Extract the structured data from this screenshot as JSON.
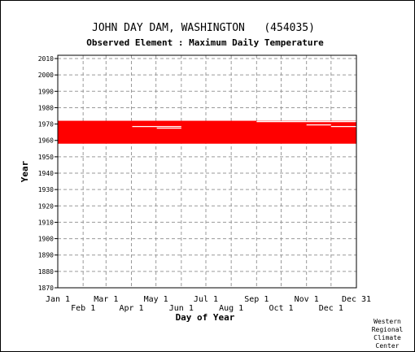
{
  "chart_data": {
    "type": "scatter",
    "title": "JOHN DAY DAM, WASHINGTON   (454035)",
    "subtitle": "Observed Element : Maximum Daily Temperature",
    "xlabel": "Day of Year",
    "ylabel": "Year",
    "x_ticks_upper": [
      "Jan 1",
      "Mar 1",
      "May 1",
      "Jul 1",
      "Sep 1",
      "Nov 1",
      "Dec 31"
    ],
    "x_ticks_lower": [
      "Feb 1",
      "Apr 1",
      "Jun 1",
      "Aug 1",
      "Oct 1",
      "Dec 1"
    ],
    "y_ticks": [
      "2010",
      "2000",
      "1990",
      "1980",
      "1970",
      "1960",
      "1950",
      "1940",
      "1930",
      "1920",
      "1910",
      "1900",
      "1890",
      "1880",
      "1870"
    ],
    "ylim": [
      1870,
      2012
    ],
    "xlim": [
      1,
      366
    ],
    "grid": true,
    "observed_period": {
      "year_start": 1958,
      "year_end": 1972,
      "day_start": 1,
      "day_end": 366
    },
    "gaps": [
      {
        "year": 1968.5,
        "day_start": 92,
        "day_end": 152
      },
      {
        "year": 1967.5,
        "day_start": 122,
        "day_end": 152
      },
      {
        "year": 1969.5,
        "day_start": 305,
        "day_end": 335
      },
      {
        "year": 1968.5,
        "day_start": 335,
        "day_end": 366
      },
      {
        "year": 1971.5,
        "day_start": 244,
        "day_end": 366
      }
    ],
    "point_color": "#ff0000"
  },
  "footer": {
    "credit_lines": [
      "Western",
      "Regional",
      "Climate",
      "Center"
    ]
  }
}
